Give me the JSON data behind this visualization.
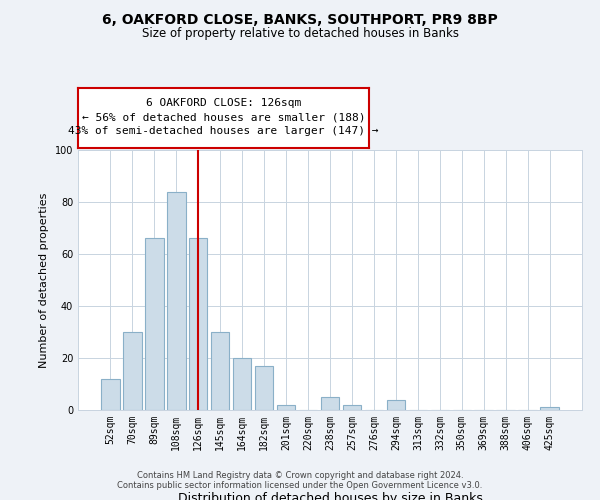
{
  "title": "6, OAKFORD CLOSE, BANKS, SOUTHPORT, PR9 8BP",
  "subtitle": "Size of property relative to detached houses in Banks",
  "xlabel": "Distribution of detached houses by size in Banks",
  "ylabel": "Number of detached properties",
  "bar_labels": [
    "52sqm",
    "70sqm",
    "89sqm",
    "108sqm",
    "126sqm",
    "145sqm",
    "164sqm",
    "182sqm",
    "201sqm",
    "220sqm",
    "238sqm",
    "257sqm",
    "276sqm",
    "294sqm",
    "313sqm",
    "332sqm",
    "350sqm",
    "369sqm",
    "388sqm",
    "406sqm",
    "425sqm"
  ],
  "bar_values": [
    12,
    30,
    66,
    84,
    66,
    30,
    20,
    17,
    2,
    0,
    5,
    2,
    0,
    4,
    0,
    0,
    0,
    0,
    0,
    0,
    1
  ],
  "bar_color": "#ccdce8",
  "bar_edge_color": "#8ab0c8",
  "vline_x": 4,
  "vline_color": "#cc0000",
  "ylim": [
    0,
    100
  ],
  "annotation_box_text": "6 OAKFORD CLOSE: 126sqm\n← 56% of detached houses are smaller (188)\n43% of semi-detached houses are larger (147) →",
  "footer_text": "Contains HM Land Registry data © Crown copyright and database right 2024.\nContains public sector information licensed under the Open Government Licence v3.0.",
  "bg_color": "#eef2f7",
  "plot_bg_color": "#ffffff",
  "grid_color": "#c8d4e0"
}
